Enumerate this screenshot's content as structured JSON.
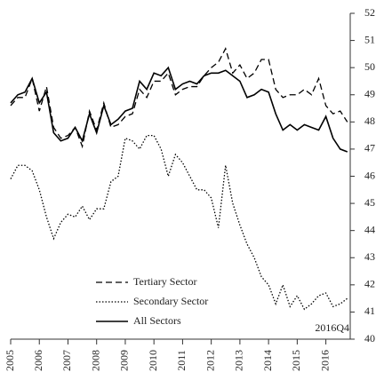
{
  "chart_data": {
    "type": "line",
    "x": [
      2005,
      2005.25,
      2005.5,
      2005.75,
      2006,
      2006.25,
      2006.5,
      2006.75,
      2007,
      2007.25,
      2007.5,
      2007.75,
      2008,
      2008.25,
      2008.5,
      2008.75,
      2009,
      2009.25,
      2009.5,
      2009.75,
      2010,
      2010.25,
      2010.5,
      2010.75,
      2011,
      2011.25,
      2011.5,
      2011.75,
      2012,
      2012.25,
      2012.5,
      2012.75,
      2013,
      2013.25,
      2013.5,
      2013.75,
      2014,
      2014.25,
      2014.5,
      2014.75,
      2015,
      2015.25,
      2015.5,
      2015.75,
      2016,
      2016.25,
      2016.5,
      2016.75
    ],
    "series": [
      {
        "name": "Tertiary Sector",
        "color": "#000000",
        "dash": "dashed",
        "values": [
          48.6,
          48.9,
          48.9,
          49.6,
          48.4,
          49.3,
          47.8,
          47.4,
          47.5,
          47.8,
          47.1,
          48.4,
          47.7,
          48.7,
          47.8,
          47.9,
          48.2,
          48.3,
          49.2,
          48.9,
          49.5,
          49.5,
          49.8,
          49.0,
          49.2,
          49.3,
          49.3,
          49.7,
          50.0,
          50.2,
          50.7,
          49.8,
          50.1,
          49.6,
          49.8,
          50.3,
          50.3,
          49.2,
          48.9,
          49.0,
          49.0,
          49.2,
          49.0,
          49.6,
          48.6,
          48.3,
          48.4,
          48.0
        ]
      },
      {
        "name": "Secondary Sector",
        "color": "#000000",
        "dash": "dotted",
        "values": [
          45.9,
          46.4,
          46.4,
          46.2,
          45.5,
          44.5,
          43.7,
          44.3,
          44.6,
          44.5,
          44.9,
          44.4,
          44.8,
          44.8,
          45.8,
          46.0,
          47.4,
          47.3,
          47.0,
          47.5,
          47.5,
          47.0,
          46.0,
          46.8,
          46.5,
          46.0,
          45.5,
          45.5,
          45.2,
          44.1,
          46.4,
          45.0,
          44.2,
          43.5,
          43.0,
          42.3,
          42.0,
          41.3,
          42.0,
          41.2,
          41.6,
          41.1,
          41.3,
          41.6,
          41.7,
          41.2,
          41.3,
          41.5
        ]
      },
      {
        "name": "All Sectors",
        "color": "#000000",
        "dash": "solid",
        "values": [
          48.7,
          49.0,
          49.1,
          49.6,
          48.7,
          49.1,
          47.6,
          47.3,
          47.4,
          47.8,
          47.3,
          48.3,
          47.6,
          48.6,
          47.9,
          48.1,
          48.4,
          48.5,
          49.5,
          49.2,
          49.8,
          49.7,
          50.0,
          49.2,
          49.4,
          49.5,
          49.4,
          49.7,
          49.8,
          49.8,
          49.9,
          49.7,
          49.5,
          48.9,
          49.0,
          49.2,
          49.1,
          48.3,
          47.7,
          47.9,
          47.7,
          47.9,
          47.8,
          47.7,
          48.2,
          47.4,
          47.0,
          46.9
        ]
      }
    ],
    "annotation": "2016Q4",
    "xlim": [
      2005,
      2016.85
    ],
    "xticks": [
      2005,
      2006,
      2007,
      2008,
      2009,
      2010,
      2011,
      2012,
      2013,
      2014,
      2015,
      2016
    ],
    "ylim": [
      40,
      52
    ],
    "yticks": [
      40,
      41,
      42,
      43,
      44,
      45,
      46,
      47,
      48,
      49,
      50,
      51,
      52
    ],
    "legend": "lower-left"
  }
}
